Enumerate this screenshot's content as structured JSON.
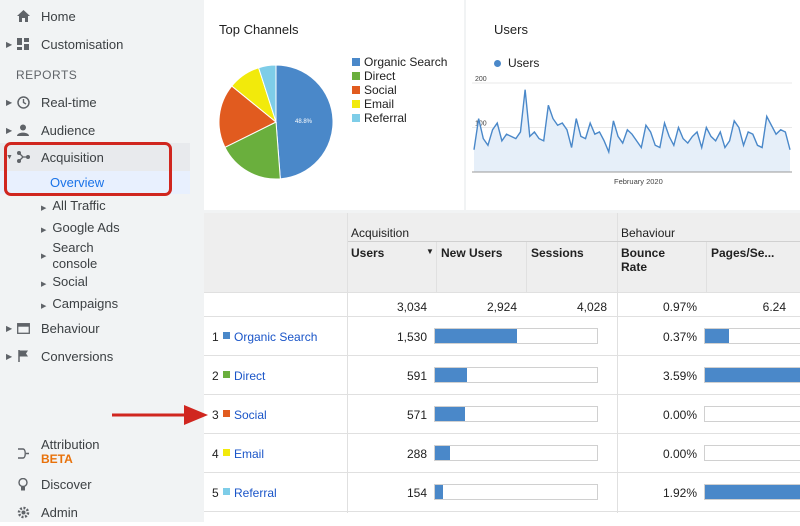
{
  "sidebar": {
    "home": "Home",
    "customisation": "Customisation",
    "reports_header": "REPORTS",
    "realtime": "Real-time",
    "audience": "Audience",
    "acquisition": "Acquisition",
    "overview": "Overview",
    "sub": [
      "All Traffic",
      "Google Ads",
      "Search\nconsole",
      "Social",
      "Campaigns"
    ],
    "behaviour": "Behaviour",
    "conversions": "Conversions",
    "attribution": "Attribution",
    "attribution_badge": "BETA",
    "discover": "Discover",
    "admin": "Admin"
  },
  "pie_card": {
    "title": "Top Channels",
    "legend": [
      "Organic Search",
      "Direct",
      "Social",
      "Email",
      "Referral"
    ],
    "slice_label": "48.8%"
  },
  "line_card": {
    "title": "Users",
    "legend": "Users",
    "y_ticks": [
      "200",
      "100"
    ],
    "x_label": "February 2020"
  },
  "colors": {
    "organic": "#4a88c9",
    "direct": "#6aaf3d",
    "social": "#e15b1f",
    "email": "#f2ea0b",
    "referral": "#7ecde8"
  },
  "table": {
    "group_acquisition": "Acquisition",
    "group_behaviour": "Behaviour",
    "col_users": "Users",
    "col_new_users": "New Users",
    "col_sessions": "Sessions",
    "col_bounce": "Bounce\nRate",
    "col_pages": "Pages/Se...",
    "totals": {
      "users": "3,034",
      "new_users": "2,924",
      "sessions": "4,028",
      "bounce": "0.97%",
      "pages": "6.24"
    },
    "rows": [
      {
        "idx": "1",
        "name": "Organic Search",
        "users": "1,530",
        "users_frac": 0.504,
        "bounce": "0.37%",
        "pages_frac": 0.22
      },
      {
        "idx": "2",
        "name": "Direct",
        "users": "591",
        "users_frac": 0.195,
        "bounce": "3.59%",
        "pages_frac": 1.0
      },
      {
        "idx": "3",
        "name": "Social",
        "users": "571",
        "users_frac": 0.188,
        "bounce": "0.00%",
        "pages_frac": 0.0
      },
      {
        "idx": "4",
        "name": "Email",
        "users": "288",
        "users_frac": 0.095,
        "bounce": "0.00%",
        "pages_frac": 0.0
      },
      {
        "idx": "5",
        "name": "Referral",
        "users": "154",
        "users_frac": 0.051,
        "bounce": "1.92%",
        "pages_frac": 1.0
      }
    ]
  },
  "chart_data": [
    {
      "type": "pie",
      "title": "Top Channels",
      "categories": [
        "Organic Search",
        "Direct",
        "Social",
        "Email",
        "Referral"
      ],
      "values": [
        50.4,
        19.5,
        18.8,
        9.5,
        5.1
      ],
      "labels": [
        "48.8%"
      ]
    },
    {
      "type": "line",
      "title": "Users",
      "xlabel": "February 2020",
      "ylim": [
        0,
        200
      ],
      "series": [
        {
          "name": "Users",
          "values": [
            50,
            120,
            75,
            60,
            95,
            110,
            70,
            85,
            80,
            75,
            90,
            185,
            80,
            90,
            75,
            70,
            150,
            120,
            105,
            110,
            95,
            55,
            120,
            80,
            75,
            110,
            85,
            90,
            70,
            45,
            115,
            80,
            65,
            95,
            85,
            70,
            55,
            105,
            90,
            60,
            55,
            110,
            80,
            60,
            100,
            75,
            65,
            80,
            90,
            55,
            100,
            80,
            70,
            90,
            55,
            70,
            115,
            100,
            60,
            90,
            85,
            60,
            55,
            125,
            105,
            85,
            95,
            90,
            50
          ]
        }
      ]
    }
  ]
}
